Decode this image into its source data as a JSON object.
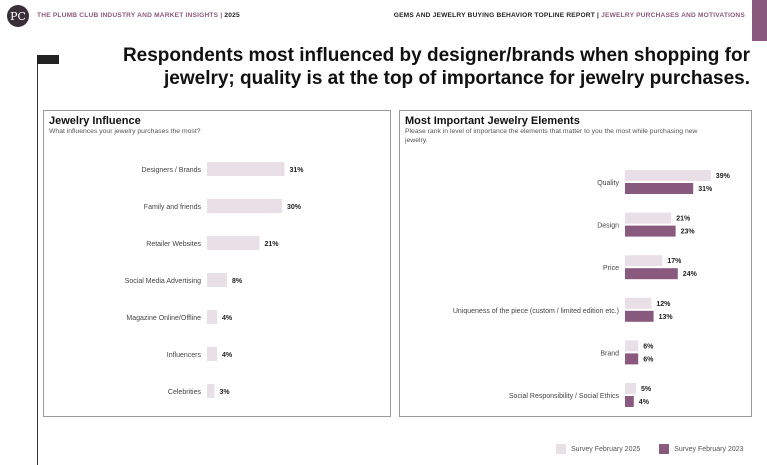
{
  "header": {
    "logo_text": "PC",
    "left_title": "THE PLUMB CLUB INDUSTRY AND MARKET INSIGHTS",
    "left_separator": "|",
    "left_year": "2025",
    "right_title": "GEMS AND JEWELRY BUYING BEHAVIOR TOPLINE REPORT",
    "right_separator": "|",
    "right_subtitle": "JEWELRY PURCHASES AND MOTIVATIONS"
  },
  "headline": "Respondents most influenced by designer/brands when shopping for jewelry; quality is at the top of importance for jewelry purchases.",
  "colors": {
    "accent": "#8a5a7e",
    "series_2025": "#e9dfe6",
    "series_2023": "#8a5a7e"
  },
  "legend": {
    "items": [
      {
        "label": "Survey February 2025",
        "color": "#e9dfe6"
      },
      {
        "label": "Survey February 2023",
        "color": "#8a5a7e"
      }
    ]
  },
  "chart_data": [
    {
      "type": "bar",
      "orientation": "horizontal",
      "title": "Jewelry Influence",
      "subtitle": "What influences your jewelry purchases the most?",
      "categories": [
        "Designers / Brands",
        "Family and friends",
        "Retailer Websites",
        "Social Media Advertising",
        "Magazine Online/Offline",
        "Influencers",
        "Celebrities"
      ],
      "series": [
        {
          "values": [
            31,
            30,
            21,
            8,
            4,
            4,
            3
          ],
          "color": "#e9dfe6"
        }
      ],
      "data_labels": [
        "31%",
        "30%",
        "21%",
        "8%",
        "4%",
        "4%",
        "3%"
      ],
      "unit": "%"
    },
    {
      "type": "bar",
      "orientation": "horizontal",
      "title": "Most Important Jewelry Elements",
      "subtitle": "Please rank in level of importance the elements that matter to you the most while purchasing new jewelry.",
      "categories": [
        "Quality",
        "Design",
        "Price",
        "Uniqueness of the piece (custom / limited edition etc.)",
        "Brand",
        "Social Responsibility / Social Ethics"
      ],
      "series": [
        {
          "name": "Survey February 2025",
          "values": [
            39,
            21,
            17,
            12,
            6,
            5
          ],
          "color": "#e9dfe6"
        },
        {
          "name": "Survey February 2023",
          "values": [
            31,
            23,
            24,
            13,
            6,
            4
          ],
          "color": "#8a5a7e"
        }
      ],
      "data_labels_2025": [
        "39%",
        "21%",
        "17%",
        "12%",
        "6%",
        "5%"
      ],
      "data_labels_2023": [
        "31%",
        "23%",
        "24%",
        "13%",
        "6%",
        "4%"
      ],
      "unit": "%"
    }
  ]
}
